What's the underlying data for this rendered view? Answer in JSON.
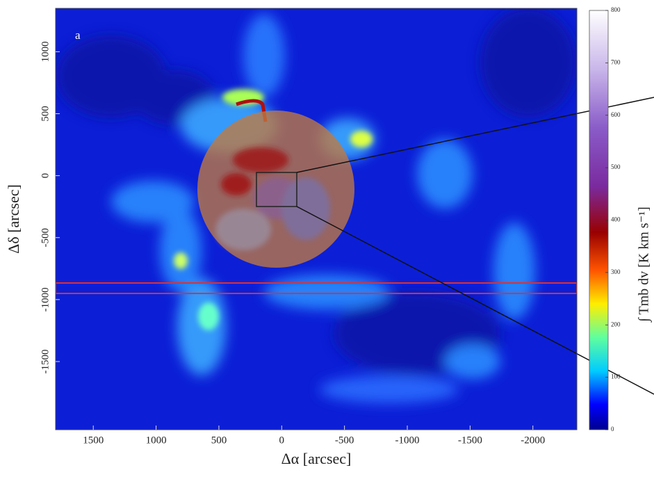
{
  "chart_data": {
    "type": "image",
    "panel_label": "a",
    "x_label": "Δα [arcsec]",
    "y_label": "Δδ [arcsec]",
    "xlim": [
      1800,
      -2350
    ],
    "xticks": [
      1500,
      1000,
      500,
      0,
      -500,
      -1000,
      -1500,
      -2000
    ],
    "ylim": [
      -2050,
      1350
    ],
    "yticks": [
      1000,
      500,
      0,
      -500,
      -1000,
      -1500
    ],
    "colorbar": {
      "label": "∫ Tmb dv [K km s⁻¹]",
      "lim": [
        0,
        800
      ],
      "ticks": [
        0,
        100,
        200,
        300,
        400,
        500,
        600,
        700,
        800
      ]
    }
  }
}
